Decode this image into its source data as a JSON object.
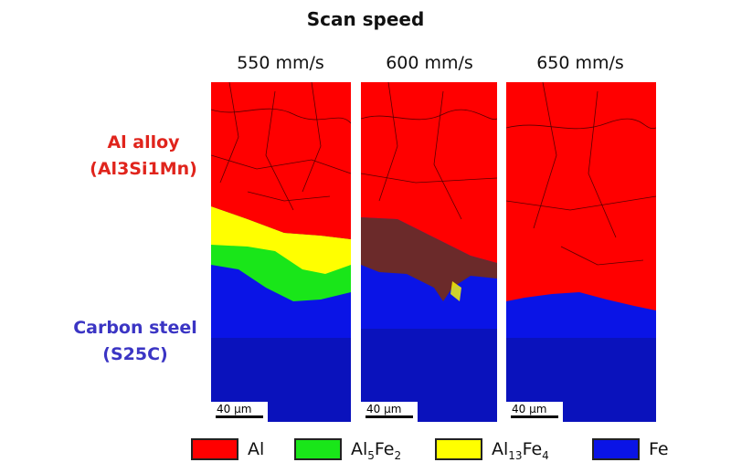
{
  "title": "Scan speed",
  "columns": [
    "550 mm/s",
    "600 mm/s",
    "650 mm/s"
  ],
  "rows": {
    "top": {
      "line1": "Al alloy",
      "line2": "(Al3Si1Mn)",
      "color": "#e0241c"
    },
    "bottom": {
      "line1": "Carbon steel",
      "line2": "(S25C)",
      "color": "#3b35c4"
    }
  },
  "scale_bar": "40 µm",
  "legend": [
    {
      "base": "Al",
      "parts": [],
      "color": "#ff0000"
    },
    {
      "base": "Al",
      "parts": [
        "5",
        "Fe",
        "2"
      ],
      "color": "#19e619"
    },
    {
      "base": "Al",
      "parts": [
        "13",
        "Fe",
        "4"
      ],
      "color": "#ffff00"
    },
    {
      "base": "Fe",
      "parts": [],
      "color": "#0a14e6"
    }
  ],
  "colors": {
    "al": "#ff0000",
    "al5fe2": "#19e619",
    "al13fe4": "#ffff00",
    "fe": "#0a14e6"
  }
}
